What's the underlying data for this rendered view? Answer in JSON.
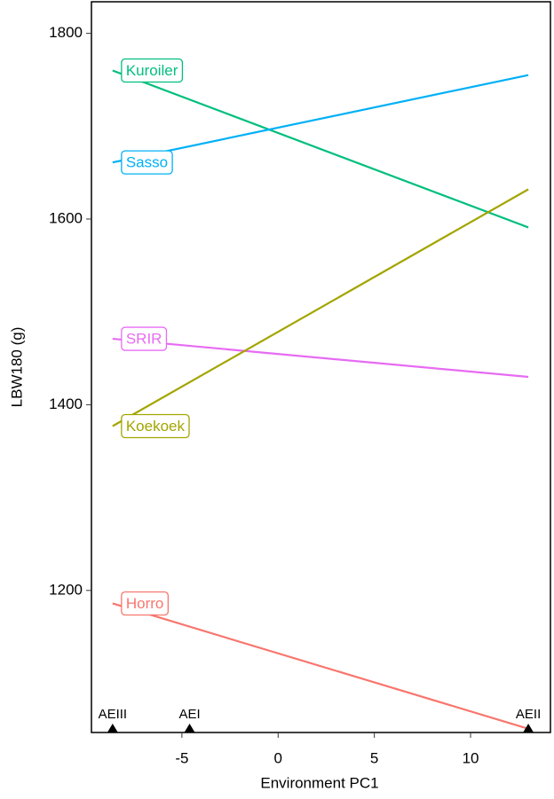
{
  "chart_data": {
    "type": "line",
    "x_label": "Environment PC1",
    "y_label": "LBW180 (g)",
    "xlim": [
      -9.7,
      14.15
    ],
    "xticks": [
      -5,
      0,
      5,
      10
    ],
    "ylim": [
      1047,
      1834
    ],
    "yticks": [
      1200,
      1400,
      1600,
      1800
    ],
    "grid": false,
    "x": [
      -8.6,
      13
    ],
    "series": [
      {
        "name": "Kuroiler",
        "color": "#00BF7D",
        "values": [
          1760,
          1591
        ]
      },
      {
        "name": "Sasso",
        "color": "#00B0F6",
        "values": [
          1661,
          1755
        ]
      },
      {
        "name": "SRIR",
        "color": "#E76BF3",
        "values": [
          1471,
          1430
        ]
      },
      {
        "name": "Koekoek",
        "color": "#A3A500",
        "values": [
          1377,
          1632
        ]
      },
      {
        "name": "Horro",
        "color": "#F8766D",
        "values": [
          1186,
          1051
        ]
      }
    ],
    "environments": [
      {
        "name": "AEIII",
        "x": -8.6
      },
      {
        "name": "AEI",
        "x": -4.6
      },
      {
        "name": "AEII",
        "x": 13
      }
    ]
  }
}
